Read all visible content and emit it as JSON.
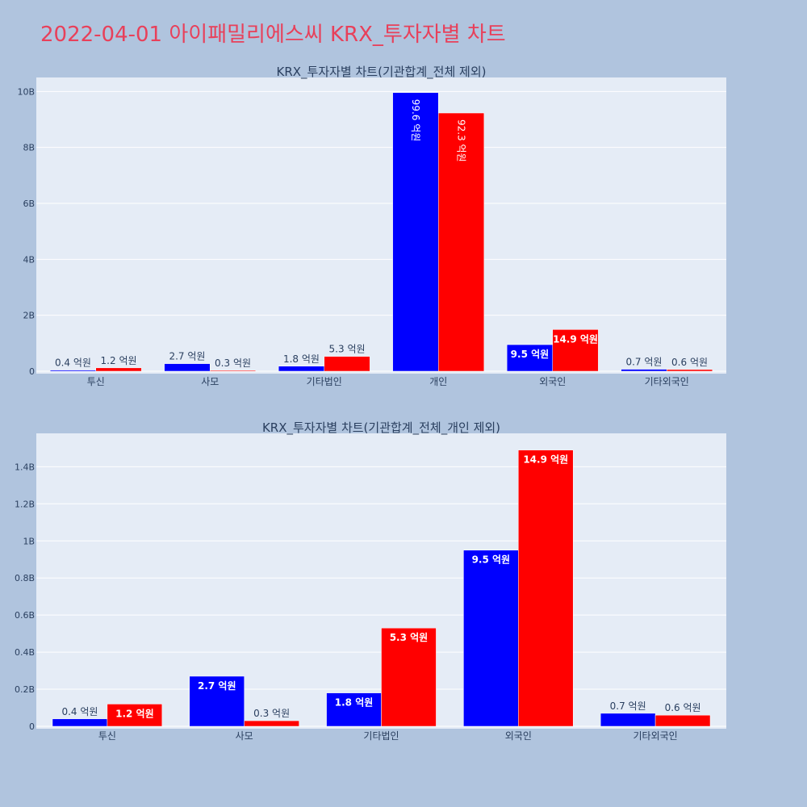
{
  "page_title": "2022-04-01 아이패밀리에스씨 KRX_투자자별 차트",
  "colors": {
    "blue": "#0000ff",
    "red": "#ff0000",
    "plot_bg": "#e5ecf6",
    "page_bg": "#b0c4de",
    "title": "#e8405a"
  },
  "chart_data": [
    {
      "type": "bar",
      "title": "KRX_투자자별 차트(기관합계_전체 제외)",
      "categories": [
        "투신",
        "사모",
        "기타법인",
        "개인",
        "외국인",
        "기타외국인"
      ],
      "series": [
        {
          "color": "#0000ff",
          "values": [
            40000000,
            270000000,
            180000000,
            9960000000,
            950000000,
            70000000
          ],
          "labels": [
            "0.4 억원",
            "2.7 억원",
            "1.8 억원",
            "99.6 억원",
            "9.5 억원",
            "0.7 억원"
          ]
        },
        {
          "color": "#ff0000",
          "values": [
            120000000,
            30000000,
            530000000,
            9230000000,
            1490000000,
            60000000
          ],
          "labels": [
            "1.2 억원",
            "0.3 억원",
            "5.3 억원",
            "92.3 억원",
            "14.9 억원",
            "0.6 억원"
          ]
        }
      ],
      "ylim": [
        0,
        10500000000
      ],
      "yticks": [
        0,
        2000000000,
        4000000000,
        6000000000,
        8000000000,
        10000000000
      ],
      "ytick_labels": [
        "0",
        "2B",
        "4B",
        "6B",
        "8B",
        "10B"
      ],
      "grid": true
    },
    {
      "type": "bar",
      "title": "KRX_투자자별 차트(기관합계_전체_개인 제외)",
      "categories": [
        "투신",
        "사모",
        "기타법인",
        "외국인",
        "기타외국인"
      ],
      "series": [
        {
          "color": "#0000ff",
          "values": [
            40000000,
            270000000,
            180000000,
            950000000,
            70000000
          ],
          "labels": [
            "0.4 억원",
            "2.7 억원",
            "1.8 억원",
            "9.5 억원",
            "0.7 억원"
          ]
        },
        {
          "color": "#ff0000",
          "values": [
            120000000,
            30000000,
            530000000,
            1490000000,
            60000000
          ],
          "labels": [
            "1.2 억원",
            "0.3 억원",
            "5.3 억원",
            "14.9 억원",
            "0.6 억원"
          ]
        }
      ],
      "ylim": [
        0,
        1580000000
      ],
      "yticks": [
        0,
        200000000,
        400000000,
        600000000,
        800000000,
        1000000000,
        1200000000,
        1400000000
      ],
      "ytick_labels": [
        "0",
        "0.2B",
        "0.4B",
        "0.6B",
        "0.8B",
        "1B",
        "1.2B",
        "1.4B"
      ],
      "grid": true
    }
  ]
}
